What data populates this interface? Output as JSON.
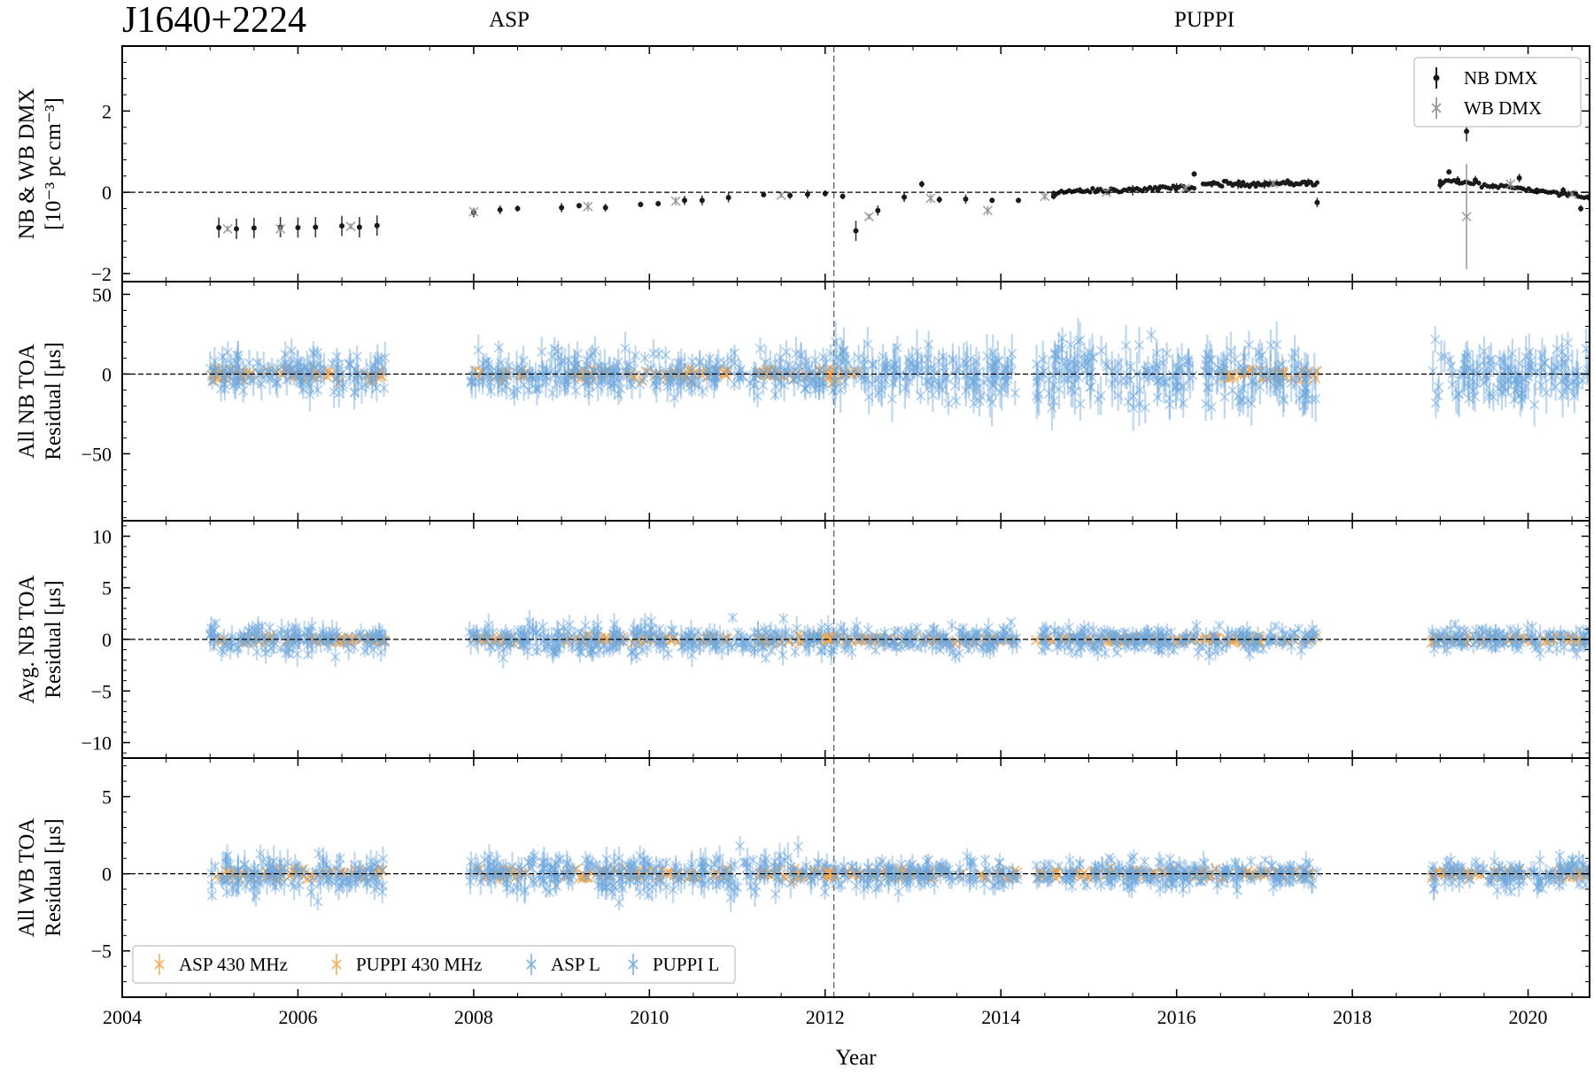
{
  "title": "J1640+2224",
  "backend_labels": [
    "ASP",
    "PUPPI"
  ],
  "colors": {
    "nb_dmx": "#1a1a1a",
    "wb_dmx": "#8c8c8c",
    "asp_430": "#f5a54a",
    "puppi_430": "#f5a54a",
    "asp_l": "#6fa8dc",
    "puppi_l": "#6fa8dc"
  },
  "chart_data": [
    {
      "type": "scatter",
      "panel": "dmx",
      "ylabel_line1": "NB & WB DMX",
      "ylabel_line2": "[10⁻³ pc cm⁻³]",
      "xlim": [
        2004,
        2020.7
      ],
      "ylim": [
        -2.2,
        3.6
      ],
      "yticks": [
        -2,
        0,
        2
      ],
      "ytick_labels": [
        "−2",
        "0",
        "2"
      ],
      "zero_line": true,
      "legend": {
        "position": "top-right",
        "entries": [
          "NB DMX",
          "WB DMX"
        ]
      },
      "series": [
        {
          "name": "NB DMX",
          "points": [
            [
              2005.1,
              -0.87
            ],
            [
              2005.3,
              -0.9
            ],
            [
              2005.5,
              -0.88
            ],
            [
              2005.8,
              -0.86
            ],
            [
              2006.0,
              -0.87
            ],
            [
              2006.2,
              -0.86
            ],
            [
              2006.5,
              -0.83
            ],
            [
              2006.7,
              -0.86
            ],
            [
              2006.9,
              -0.82
            ],
            [
              2008.0,
              -0.5
            ],
            [
              2008.3,
              -0.43
            ],
            [
              2008.5,
              -0.4
            ],
            [
              2009.0,
              -0.38
            ],
            [
              2009.2,
              -0.33
            ],
            [
              2009.5,
              -0.38
            ],
            [
              2009.9,
              -0.3
            ],
            [
              2010.1,
              -0.28
            ],
            [
              2010.4,
              -0.2
            ],
            [
              2010.6,
              -0.2
            ],
            [
              2010.9,
              -0.13
            ],
            [
              2011.3,
              -0.06
            ],
            [
              2011.6,
              -0.08
            ],
            [
              2011.8,
              -0.05
            ],
            [
              2012.0,
              -0.03
            ],
            [
              2012.2,
              -0.1
            ],
            [
              2012.35,
              -0.95
            ],
            [
              2012.6,
              -0.45
            ],
            [
              2012.9,
              -0.12
            ],
            [
              2013.1,
              0.2
            ],
            [
              2013.3,
              -0.18
            ],
            [
              2013.6,
              -0.17
            ],
            [
              2013.9,
              -0.2
            ],
            [
              2014.2,
              -0.2
            ],
            [
              2014.6,
              -0.1
            ],
            [
              2014.9,
              0.05
            ],
            [
              2015.1,
              0.05
            ],
            [
              2015.5,
              0.05
            ],
            [
              2015.8,
              0.1
            ],
            [
              2016.0,
              0.12
            ],
            [
              2016.2,
              0.45
            ],
            [
              2016.4,
              0.2
            ],
            [
              2016.7,
              0.2
            ],
            [
              2017.0,
              0.2
            ],
            [
              2017.3,
              0.22
            ],
            [
              2017.5,
              0.25
            ],
            [
              2017.6,
              -0.25
            ],
            [
              2019.0,
              0.18
            ],
            [
              2019.1,
              0.5
            ],
            [
              2019.2,
              0.3
            ],
            [
              2019.3,
              1.5
            ],
            [
              2019.4,
              0.3
            ],
            [
              2019.6,
              0.15
            ],
            [
              2019.9,
              0.35
            ],
            [
              2020.1,
              0.05
            ],
            [
              2020.4,
              0.05
            ],
            [
              2020.6,
              -0.4
            ],
            [
              2020.7,
              -0.1
            ]
          ]
        },
        {
          "name": "WB DMX",
          "points": [
            [
              2005.2,
              -0.9
            ],
            [
              2005.8,
              -0.9
            ],
            [
              2006.6,
              -0.84
            ],
            [
              2008.0,
              -0.48
            ],
            [
              2009.3,
              -0.35
            ],
            [
              2010.3,
              -0.22
            ],
            [
              2011.5,
              -0.07
            ],
            [
              2012.5,
              -0.6
            ],
            [
              2013.2,
              -0.15
            ],
            [
              2013.85,
              -0.45
            ],
            [
              2014.5,
              -0.1
            ],
            [
              2015.2,
              0.0
            ],
            [
              2016.1,
              0.1
            ],
            [
              2017.1,
              0.22
            ],
            [
              2019.3,
              -0.6
            ],
            [
              2019.8,
              0.2
            ],
            [
              2020.5,
              -0.05
            ]
          ]
        }
      ]
    },
    {
      "type": "scatter",
      "panel": "nb_all",
      "ylabel_line1": "All NB TOA",
      "ylabel_line2": "Residual [μs]",
      "xlim": [
        2004,
        2020.7
      ],
      "ylim": [
        -92,
        58
      ],
      "yticks": [
        -50,
        0,
        50
      ],
      "ytick_labels": [
        "−50",
        "0",
        "50"
      ],
      "zero_line": true,
      "series": [
        {
          "name": "ASP 430 MHz",
          "ranges": [
            [
              2005.0,
              2007.0
            ],
            [
              2008.0,
              2008.6
            ],
            [
              2009.0,
              2010.9
            ],
            [
              2011.2,
              2012.1
            ]
          ],
          "spread": 6
        },
        {
          "name": "ASP L",
          "ranges": [
            [
              2005.0,
              2007.0
            ],
            [
              2007.95,
              2012.1
            ]
          ],
          "spread": 22
        },
        {
          "name": "PUPPI 430 MHz",
          "ranges": [
            [
              2012.0,
              2012.4
            ],
            [
              2016.5,
              2017.6
            ]
          ],
          "spread": 8
        },
        {
          "name": "PUPPI L",
          "ranges": [
            [
              2012.1,
              2014.2
            ],
            [
              2014.4,
              2016.2
            ],
            [
              2016.3,
              2017.6
            ],
            [
              2018.9,
              2020.7
            ]
          ],
          "spread": 30
        }
      ]
    },
    {
      "type": "scatter",
      "panel": "nb_avg",
      "ylabel_line1": "Avg. NB TOA",
      "ylabel_line2": "Residual [μs]",
      "xlim": [
        2004,
        2020.7
      ],
      "ylim": [
        -11.5,
        11.5
      ],
      "yticks": [
        -10,
        -5,
        0,
        5,
        10
      ],
      "ytick_labels": [
        "−10",
        "−5",
        "0",
        "5",
        "10"
      ],
      "zero_line": true,
      "series": [
        {
          "name": "ASP 430 MHz",
          "ranges": [
            [
              2005.0,
              2007.0
            ],
            [
              2008.0,
              2008.6
            ],
            [
              2009.0,
              2010.9
            ],
            [
              2011.2,
              2012.1
            ]
          ],
          "spread": 0.6
        },
        {
          "name": "ASP L",
          "ranges": [
            [
              2005.0,
              2007.0
            ],
            [
              2007.95,
              2012.1
            ]
          ],
          "spread": 2.5
        },
        {
          "name": "PUPPI 430 MHz",
          "ranges": [
            [
              2012.0,
              2014.2
            ],
            [
              2014.4,
              2017.6
            ],
            [
              2018.9,
              2020.7
            ]
          ],
          "spread": 0.5
        },
        {
          "name": "PUPPI L",
          "ranges": [
            [
              2012.1,
              2014.2
            ],
            [
              2014.4,
              2017.6
            ],
            [
              2018.9,
              2020.7
            ]
          ],
          "spread": 2.0
        }
      ]
    },
    {
      "type": "scatter",
      "panel": "wb_all",
      "ylabel_line1": "All WB TOA",
      "ylabel_line2": "Residual [μs]",
      "xlim": [
        2004,
        2020.7
      ],
      "ylim": [
        -8,
        7.5
      ],
      "yticks": [
        -5,
        0,
        5
      ],
      "ytick_labels": [
        "−5",
        "0",
        "5"
      ],
      "zero_line": true,
      "xticks": [
        2004,
        2006,
        2008,
        2010,
        2012,
        2014,
        2016,
        2018,
        2020
      ],
      "xtick_labels": [
        "2004",
        "2006",
        "2008",
        "2010",
        "2012",
        "2014",
        "2016",
        "2018",
        "2020"
      ],
      "xlabel": "Year",
      "legend": {
        "position": "bottom-left",
        "entries": [
          "ASP 430 MHz",
          "PUPPI 430 MHz",
          "ASP L",
          "PUPPI L"
        ]
      },
      "series": [
        {
          "name": "ASP 430 MHz",
          "ranges": [
            [
              2005.0,
              2007.0
            ],
            [
              2008.0,
              2008.6
            ],
            [
              2009.0,
              2010.9
            ],
            [
              2011.2,
              2012.1
            ]
          ],
          "spread": 0.6
        },
        {
          "name": "ASP L",
          "ranges": [
            [
              2005.0,
              2007.0
            ],
            [
              2007.95,
              2012.1
            ]
          ],
          "spread": 2.0
        },
        {
          "name": "PUPPI 430 MHz",
          "ranges": [
            [
              2012.0,
              2014.2
            ],
            [
              2014.4,
              2017.6
            ],
            [
              2018.9,
              2020.7
            ]
          ],
          "spread": 0.5
        },
        {
          "name": "PUPPI L",
          "ranges": [
            [
              2012.1,
              2014.2
            ],
            [
              2014.4,
              2017.6
            ],
            [
              2018.9,
              2020.7
            ]
          ],
          "spread": 1.5
        }
      ]
    }
  ],
  "backend_switch_year": 2012.1
}
